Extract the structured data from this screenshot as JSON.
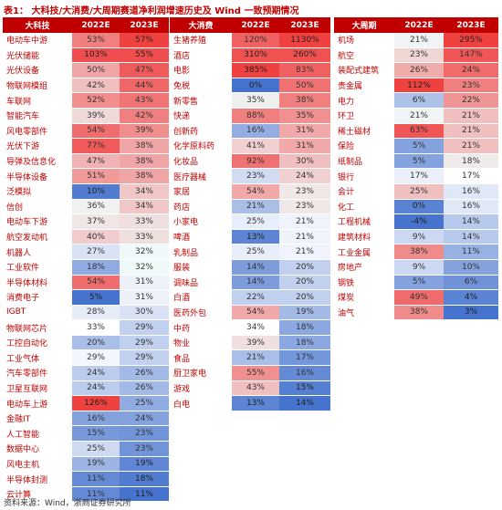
{
  "title": "表1： 大科技/大消费/大周期赛道净利润增速历史及 Wind 一致预期情况",
  "tables": [
    {
      "header": [
        "大科技",
        "2022E",
        "2023E"
      ],
      "rows": [
        [
          "电动车中游",
          "53%",
          "57%"
        ],
        [
          "光伏储能",
          "103%",
          "55%"
        ],
        [
          "光伏设备",
          "50%",
          "47%"
        ],
        [
          "物联网模组",
          "42%",
          "44%"
        ],
        [
          "车联网",
          "52%",
          "43%"
        ],
        [
          "智能汽车",
          "39%",
          "42%"
        ],
        [
          "风电零部件",
          "54%",
          "39%"
        ],
        [
          "光伏下游",
          "77%",
          "38%"
        ],
        [
          "导弹及信息化",
          "47%",
          "38%"
        ],
        [
          "半导体设备",
          "51%",
          "38%"
        ],
        [
          "泛模拟",
          "10%",
          "34%"
        ],
        [
          "信创",
          "36%",
          "34%"
        ],
        [
          "电动车下游",
          "37%",
          "33%"
        ],
        [
          "航空发动机",
          "40%",
          "33%"
        ],
        [
          "机器人",
          "27%",
          "32%"
        ],
        [
          "工业软件",
          "18%",
          "32%"
        ],
        [
          "半导体材料",
          "54%",
          "31%"
        ],
        [
          "消费电子",
          "5%",
          "31%"
        ],
        [
          "IGBT",
          "28%",
          "30%"
        ],
        [
          "物联网芯片",
          "33%",
          "29%"
        ],
        [
          "工控自动化",
          "20%",
          "29%"
        ],
        [
          "工业气体",
          "29%",
          "29%"
        ],
        [
          "汽车零部件",
          "24%",
          "26%"
        ],
        [
          "卫星互联网",
          "24%",
          "26%"
        ],
        [
          "电动车上游",
          "126%",
          "25%"
        ],
        [
          "金融IT",
          "16%",
          "24%"
        ],
        [
          "人工智能",
          "15%",
          "23%"
        ],
        [
          "数据中心",
          "25%",
          "23%"
        ],
        [
          "风电主机",
          "19%",
          "19%"
        ],
        [
          "半导体封测",
          "11%",
          "18%"
        ],
        [
          "云计算",
          "11%",
          "11%"
        ]
      ]
    },
    {
      "header": [
        "大消费",
        "2022E",
        "2023E"
      ],
      "rows": [
        [
          "生猪养殖",
          "120%",
          "1130%"
        ],
        [
          "酒店",
          "310%",
          "260%"
        ],
        [
          "电影",
          "385%",
          "83%"
        ],
        [
          "免税",
          "0%",
          "50%"
        ],
        [
          "新零售",
          "35%",
          "38%"
        ],
        [
          "快递",
          "88%",
          "35%"
        ],
        [
          "创新药",
          "16%",
          "31%"
        ],
        [
          "化学原料药",
          "41%",
          "31%"
        ],
        [
          "化妆品",
          "92%",
          "30%"
        ],
        [
          "医疗器械",
          "23%",
          "24%"
        ],
        [
          "家居",
          "54%",
          "23%"
        ],
        [
          "药店",
          "21%",
          "23%"
        ],
        [
          "小家电",
          "25%",
          "21%"
        ],
        [
          "啤酒",
          "13%",
          "21%"
        ],
        [
          "乳制品",
          "25%",
          "21%"
        ],
        [
          "服装",
          "14%",
          "20%"
        ],
        [
          "调味品",
          "14%",
          "20%"
        ],
        [
          "白酒",
          "22%",
          "20%"
        ],
        [
          "医药外包",
          "54%",
          "19%"
        ],
        [
          "中药",
          "34%",
          "18%"
        ],
        [
          "物业",
          "39%",
          "18%"
        ],
        [
          "食品",
          "21%",
          "17%"
        ],
        [
          "厨卫家电",
          "55%",
          "16%"
        ],
        [
          "游戏",
          "43%",
          "15%"
        ],
        [
          "白电",
          "13%",
          "14%"
        ]
      ]
    },
    {
      "header": [
        "大周期",
        "2022E",
        "2023E"
      ],
      "rows": [
        [
          "机场",
          "21%",
          "295%"
        ],
        [
          "航空",
          "23%",
          "147%"
        ],
        [
          "装配式建筑",
          "26%",
          "24%"
        ],
        [
          "贵金属",
          "112%",
          "23%"
        ],
        [
          "电力",
          "6%",
          "22%"
        ],
        [
          "环卫",
          "21%",
          "21%"
        ],
        [
          "稀土磁材",
          "63%",
          "21%"
        ],
        [
          "保险",
          "5%",
          "21%"
        ],
        [
          "纸制品",
          "5%",
          "18%"
        ],
        [
          "银行",
          "17%",
          "17%"
        ],
        [
          "会计",
          "25%",
          "16%"
        ],
        [
          "化工",
          "0%",
          "16%"
        ],
        [
          "工程机械",
          "-4%",
          "14%"
        ],
        [
          "建筑材料",
          "9%",
          "14%"
        ],
        [
          "工业金属",
          "38%",
          "11%"
        ],
        [
          "房地产",
          "9%",
          "10%"
        ],
        [
          "钢铁",
          "5%",
          "6%"
        ],
        [
          "煤炭",
          "49%",
          "4%"
        ],
        [
          "油气",
          "38%",
          "3%"
        ]
      ]
    }
  ],
  "source": "资料来源：Wind，浙商证券研究所"
}
